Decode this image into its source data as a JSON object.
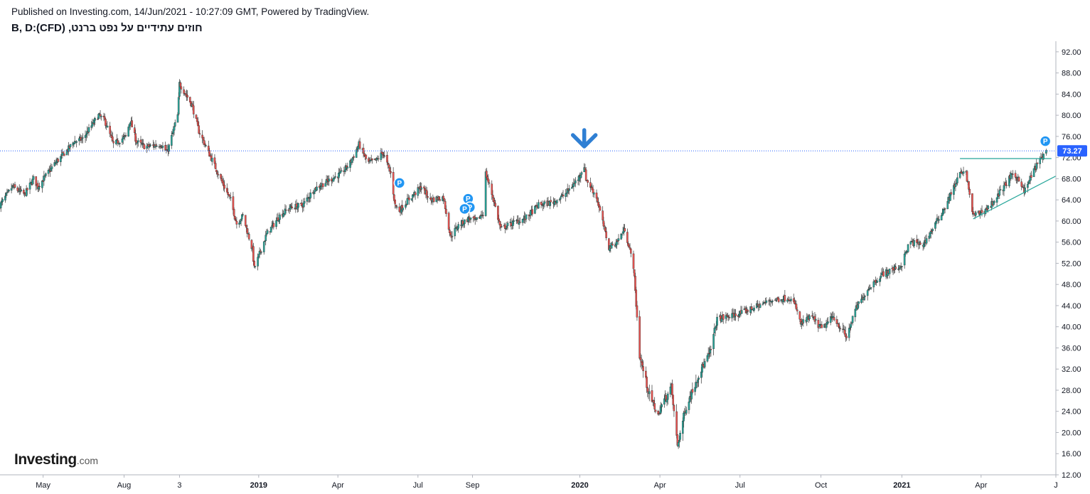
{
  "header": {
    "published": "Published on Investing.com, 14/Jun/2021 - 10:27:09 GMT, Powered by TradingView.",
    "symbol": "חוזים עתידיים על נפט ברנט, (CFD):B, D"
  },
  "logo": {
    "main": "Investing",
    "suffix": ".com"
  },
  "colors": {
    "up": "#26a69a",
    "down": "#ef5350",
    "axis": "#b2b5be",
    "price_line": "#2962ff",
    "price_tag": "#2962ff",
    "trendline": "#26a69a",
    "arrow": "#2f7fd3",
    "marker": "#2196f3"
  },
  "chart_data": {
    "type": "candlestick",
    "title": "",
    "xlabel": "",
    "ylabel": "",
    "ylim": [
      12,
      94
    ],
    "y_ticks": [
      12,
      16,
      20,
      24,
      28,
      32,
      36,
      40,
      44,
      48,
      52,
      56,
      60,
      64,
      68,
      72,
      76,
      80,
      84,
      88,
      92
    ],
    "x_range": [
      "2018-03-13",
      "2021-06-25"
    ],
    "x_ticks": [
      {
        "label": "May",
        "date": "2018-05-01",
        "bold": false
      },
      {
        "label": "Aug",
        "date": "2018-08-01",
        "bold": false
      },
      {
        "label": "3",
        "date": "2018-10-03",
        "bold": false
      },
      {
        "label": "2019",
        "date": "2019-01-01",
        "bold": true
      },
      {
        "label": "Apr",
        "date": "2019-04-01",
        "bold": false
      },
      {
        "label": "Jul",
        "date": "2019-07-01",
        "bold": false
      },
      {
        "label": "Sep",
        "date": "2019-09-01",
        "bold": false
      },
      {
        "label": "2020",
        "date": "2020-01-01",
        "bold": true
      },
      {
        "label": "Apr",
        "date": "2020-04-01",
        "bold": false
      },
      {
        "label": "Jul",
        "date": "2020-07-01",
        "bold": false
      },
      {
        "label": "Oct",
        "date": "2020-10-01",
        "bold": false
      },
      {
        "label": "2021",
        "date": "2021-01-01",
        "bold": true
      },
      {
        "label": "Apr",
        "date": "2021-04-01",
        "bold": false
      },
      {
        "label": "J",
        "date": "2021-06-25",
        "bold": false
      }
    ],
    "last_price": 73.27,
    "last_price_label": "73.27",
    "grid": false,
    "series": [
      {
        "kind": "close_path",
        "points": [
          [
            "2018-03-13",
            63.0
          ],
          [
            "2018-03-27",
            66.5
          ],
          [
            "2018-04-10",
            65.0
          ],
          [
            "2018-04-20",
            68.0
          ],
          [
            "2018-04-25",
            66.5
          ],
          [
            "2018-05-15",
            71.0
          ],
          [
            "2018-05-29",
            73.5
          ],
          [
            "2018-06-05",
            75.0
          ],
          [
            "2018-06-15",
            75.5
          ],
          [
            "2018-07-03",
            80.0
          ],
          [
            "2018-07-10",
            79.0
          ],
          [
            "2018-07-20",
            74.5
          ],
          [
            "2018-08-03",
            76.0
          ],
          [
            "2018-08-08",
            79.0
          ],
          [
            "2018-08-15",
            75.0
          ],
          [
            "2018-08-25",
            74.0
          ],
          [
            "2018-09-12",
            74.5
          ],
          [
            "2018-09-19",
            73.0
          ],
          [
            "2018-10-01",
            80.0
          ],
          [
            "2018-10-03",
            86.0
          ],
          [
            "2018-10-10",
            84.0
          ],
          [
            "2018-10-17",
            82.0
          ],
          [
            "2018-10-25",
            77.0
          ],
          [
            "2018-11-05",
            73.0
          ],
          [
            "2018-11-20",
            67.5
          ],
          [
            "2018-11-30",
            64.0
          ],
          [
            "2018-12-07",
            59.5
          ],
          [
            "2018-12-14",
            61.0
          ],
          [
            "2018-12-25",
            54.5
          ],
          [
            "2018-12-27",
            51.0
          ],
          [
            "2019-01-10",
            57.5
          ],
          [
            "2019-01-25",
            61.0
          ],
          [
            "2019-02-05",
            62.5
          ],
          [
            "2019-02-20",
            63.0
          ],
          [
            "2019-03-05",
            66.0
          ],
          [
            "2019-03-20",
            67.5
          ],
          [
            "2019-04-05",
            69.0
          ],
          [
            "2019-04-15",
            71.0
          ],
          [
            "2019-04-25",
            74.5
          ],
          [
            "2019-05-05",
            71.0
          ],
          [
            "2019-05-15",
            71.5
          ],
          [
            "2019-05-22",
            73.0
          ],
          [
            "2019-05-31",
            69.0
          ],
          [
            "2019-06-05",
            63.0
          ],
          [
            "2019-06-10",
            62.0
          ],
          [
            "2019-06-20",
            64.0
          ],
          [
            "2019-07-05",
            66.5
          ],
          [
            "2019-07-15",
            64.0
          ],
          [
            "2019-07-30",
            64.5
          ],
          [
            "2019-08-07",
            57.0
          ],
          [
            "2019-08-15",
            59.0
          ],
          [
            "2019-08-28",
            60.5
          ],
          [
            "2019-09-05",
            60.0
          ],
          [
            "2019-09-13",
            61.5
          ],
          [
            "2019-09-16",
            69.0
          ],
          [
            "2019-09-25",
            64.0
          ],
          [
            "2019-10-03",
            58.5
          ],
          [
            "2019-10-15",
            59.5
          ],
          [
            "2019-10-31",
            60.5
          ],
          [
            "2019-11-15",
            63.0
          ],
          [
            "2019-12-01",
            63.5
          ],
          [
            "2019-12-15",
            65.0
          ],
          [
            "2019-12-30",
            68.0
          ],
          [
            "2020-01-06",
            70.5
          ],
          [
            "2020-01-08",
            68.0
          ],
          [
            "2020-01-20",
            64.5
          ],
          [
            "2020-02-03",
            55.0
          ],
          [
            "2020-02-12",
            56.0
          ],
          [
            "2020-02-21",
            58.5
          ],
          [
            "2020-03-02",
            51.5
          ],
          [
            "2020-03-09",
            34.5
          ],
          [
            "2020-03-20",
            27.0
          ],
          [
            "2020-03-31",
            23.0
          ],
          [
            "2020-04-01",
            24.5
          ],
          [
            "2020-04-14",
            28.5
          ],
          [
            "2020-04-21",
            17.5
          ],
          [
            "2020-04-30",
            24.5
          ],
          [
            "2020-05-15",
            31.0
          ],
          [
            "2020-05-28",
            35.0
          ],
          [
            "2020-06-05",
            41.5
          ],
          [
            "2020-06-20",
            42.0
          ],
          [
            "2020-07-01",
            42.5
          ],
          [
            "2020-07-15",
            43.5
          ],
          [
            "2020-08-05",
            45.0
          ],
          [
            "2020-08-26",
            45.5
          ],
          [
            "2020-09-02",
            44.0
          ],
          [
            "2020-09-08",
            40.5
          ],
          [
            "2020-09-20",
            42.0
          ],
          [
            "2020-10-02",
            39.5
          ],
          [
            "2020-10-15",
            42.0
          ],
          [
            "2020-10-30",
            38.0
          ],
          [
            "2020-11-10",
            43.5
          ],
          [
            "2020-11-25",
            47.5
          ],
          [
            "2020-12-10",
            50.0
          ],
          [
            "2020-12-31",
            51.5
          ],
          [
            "2021-01-10",
            56.0
          ],
          [
            "2021-01-25",
            55.5
          ],
          [
            "2021-02-05",
            58.5
          ],
          [
            "2021-02-20",
            63.0
          ],
          [
            "2021-03-08",
            69.0
          ],
          [
            "2021-03-15",
            69.0
          ],
          [
            "2021-03-23",
            61.0
          ],
          [
            "2021-04-05",
            62.0
          ],
          [
            "2021-04-12",
            63.0
          ],
          [
            "2021-04-25",
            66.0
          ],
          [
            "2021-05-05",
            68.5
          ],
          [
            "2021-05-15",
            68.0
          ],
          [
            "2021-05-20",
            65.5
          ],
          [
            "2021-06-01",
            70.0
          ],
          [
            "2021-06-14",
            73.27
          ]
        ]
      }
    ],
    "drawings": [
      {
        "kind": "horizontal_line",
        "from": "2021-03-08",
        "to": "2021-06-20",
        "y": 71.8
      },
      {
        "kind": "trendline",
        "from": [
          "2021-03-23",
          60.4
        ],
        "to": [
          "2021-06-25",
          68.5
        ]
      }
    ],
    "markers": [
      {
        "kind": "arrow_down",
        "date": "2020-01-06",
        "y": 74.5
      },
      {
        "kind": "badge",
        "label": "P",
        "date": "2019-06-10",
        "y": 67.2
      },
      {
        "kind": "badge",
        "label": "P",
        "date": "2019-08-27",
        "y": 64.2
      },
      {
        "kind": "badge",
        "label": "P",
        "date": "2019-08-29",
        "y": 62.6
      },
      {
        "kind": "badge",
        "label": "P",
        "date": "2019-08-23",
        "y": 62.3
      },
      {
        "kind": "badge",
        "label": "P",
        "date": "2021-06-13",
        "y": 75.1
      }
    ]
  }
}
